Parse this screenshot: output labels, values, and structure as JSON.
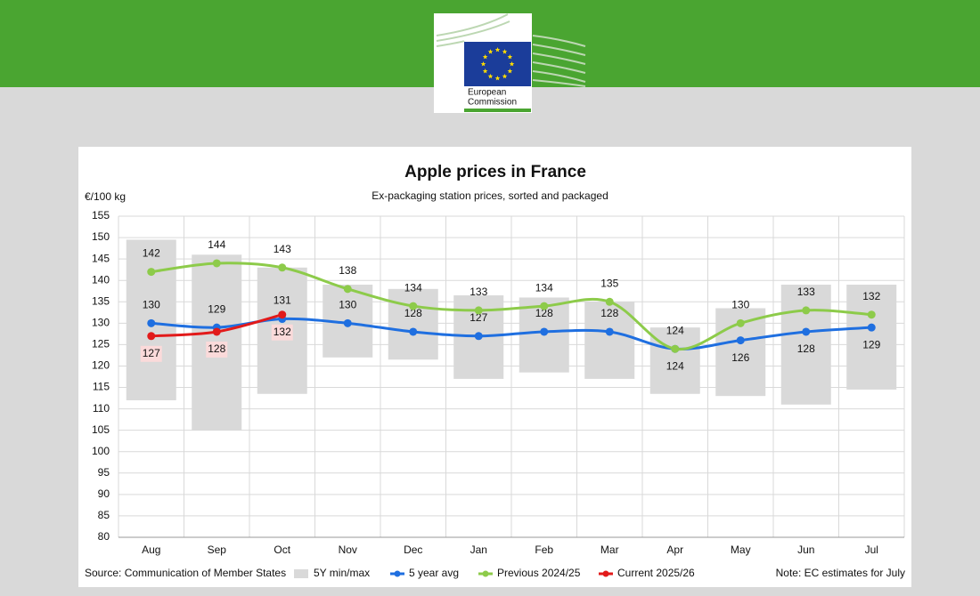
{
  "logo": [
    "European",
    "Commission"
  ],
  "chart_data": {
    "type": "line",
    "title": "Apple prices in France",
    "subtitle": "Ex-packaging station prices, sorted and packaged",
    "y_axis_label": "€/100 kg",
    "source": "Source: Communication of Member States",
    "note": "Note: EC estimates for July",
    "categories": [
      "Aug",
      "Sep",
      "Oct",
      "Nov",
      "Dec",
      "Jan",
      "Feb",
      "Mar",
      "Apr",
      "May",
      "Jun",
      "Jul"
    ],
    "ylim": [
      80,
      155
    ],
    "yticks": [
      80,
      85,
      90,
      95,
      100,
      105,
      110,
      115,
      120,
      125,
      130,
      135,
      140,
      145,
      150,
      155
    ],
    "grid": true,
    "range": {
      "name": "5Y min/max",
      "color": "#d9d9d9",
      "low": [
        112,
        105,
        113.5,
        122,
        121.5,
        117,
        118.5,
        117,
        113.5,
        113,
        111,
        114.5
      ],
      "high": [
        149.5,
        146,
        143,
        139,
        138,
        136.5,
        136,
        135,
        129,
        133.5,
        139,
        139
      ]
    },
    "series": [
      {
        "name": "5 year avg",
        "color": "#1f6fe0",
        "values": [
          130,
          129,
          131,
          130,
          128,
          127,
          128,
          128,
          124,
          126,
          128,
          129
        ]
      },
      {
        "name": "Previous 2024/25",
        "color": "#8dcb4a",
        "values": [
          142,
          144,
          143,
          138,
          134,
          133,
          134,
          135,
          124,
          130,
          133,
          132
        ]
      },
      {
        "name": "Current 2025/26",
        "color": "#e21a1a",
        "values": [
          127,
          128,
          132,
          null,
          null,
          null,
          null,
          null,
          null,
          null,
          null,
          null
        ]
      }
    ]
  }
}
